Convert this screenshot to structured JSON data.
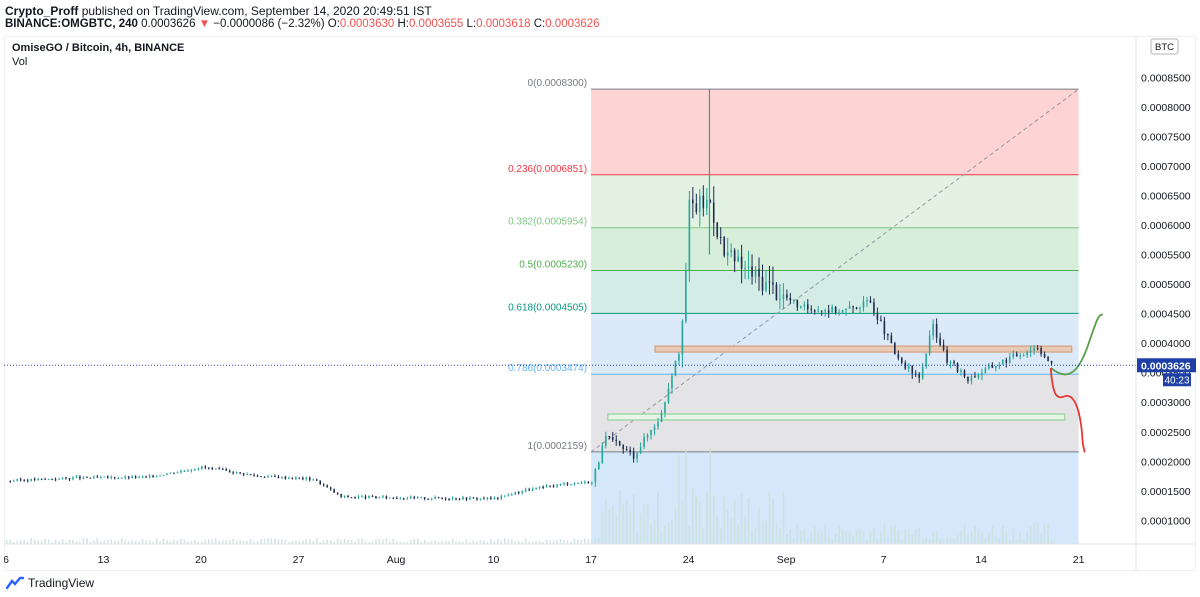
{
  "header": {
    "author": "Crypto_Proff",
    "published_text": "published on TradingView.com, September 14, 2020 20:49:51 IST",
    "symbol": "BINANCE:OMGBTC, 240",
    "last_price": "0.0003626",
    "change": "−0.0000086 (−2.32%)",
    "change_arrow": "▼",
    "open_label": "O:",
    "open": "0.0003630",
    "high_label": "H:",
    "high": "0.0003655",
    "low_label": "L:",
    "low": "0.0003618",
    "close_label": "C:",
    "close": "0.0003626"
  },
  "legend": {
    "title": "OmiseGO / Bitcoin, 4h, BINANCE",
    "volume_label": "Vol"
  },
  "price_axis": {
    "currency_badge": "BTC",
    "price_tag": "0.0003626",
    "countdown": "40:23"
  },
  "footer": {
    "brand": "TradingView"
  },
  "colors": {
    "up": "#26a69a",
    "down": "#1e2b4d",
    "line": "#2196f3",
    "price_line": "#1e40a6",
    "fib_red": "#f23645",
    "fib_green": "#4caf50",
    "fib_teal": "#089981",
    "fib_blue": "#2962ff"
  },
  "chart_data": {
    "type": "candlestick",
    "ylim": [
      6e-05,
      0.00092
    ],
    "x_ticks": [
      "6",
      "13",
      "20",
      "27",
      "Aug",
      "10",
      "17",
      "24",
      "Sep",
      "7",
      "14",
      "21"
    ],
    "y_ticks": [
      "0.0001000",
      "0.0001500",
      "0.0002000",
      "0.0002500",
      "0.0003000",
      "0.0003500",
      "0.0004000",
      "0.0004500",
      "0.0005000",
      "0.0005500",
      "0.0006000",
      "0.0006500",
      "0.0007000",
      "0.0007500",
      "0.0008000",
      "0.0008500"
    ],
    "current_price": 0.0003626,
    "fibonacci": [
      {
        "label": "0(0.0008300)",
        "price": 0.00083,
        "color": "#787b86"
      },
      {
        "label": "0.236(0.0006851)",
        "price": 0.0006851,
        "color": "#f23645"
      },
      {
        "label": "0.382(0.0005954)",
        "price": 0.0005954,
        "color": "#81c784"
      },
      {
        "label": "0.5(0.0005230)",
        "price": 0.000523,
        "color": "#4caf50"
      },
      {
        "label": "0.618(0.0004505)",
        "price": 0.0004505,
        "color": "#089981"
      },
      {
        "label": "0.786(0.0003474)",
        "price": 0.0003474,
        "color": "#64b5f6"
      },
      {
        "label": "1(0.0002159)",
        "price": 0.0002159,
        "color": "#787b86"
      }
    ],
    "zones": [
      {
        "name": "resistance",
        "price_low": 0.000385,
        "price_high": 0.000395,
        "color": "#d7a98f"
      },
      {
        "name": "support",
        "price_low": 0.00027,
        "price_high": 0.00028,
        "color": "#a5d6a7"
      }
    ],
    "series_path": [
      {
        "day": 0,
        "price": 0.000167
      },
      {
        "day": 5,
        "price": 0.000172
      },
      {
        "day": 10,
        "price": 0.000173
      },
      {
        "day": 14,
        "price": 0.00019
      },
      {
        "day": 18,
        "price": 0.000175
      },
      {
        "day": 22,
        "price": 0.00017
      },
      {
        "day": 24,
        "price": 0.00014
      },
      {
        "day": 29,
        "price": 0.000138
      },
      {
        "day": 35,
        "price": 0.000137
      },
      {
        "day": 37,
        "price": 0.00015
      },
      {
        "day": 40,
        "price": 0.000162
      },
      {
        "day": 42,
        "price": 0.000165
      },
      {
        "day": 43,
        "price": 0.00024
      },
      {
        "day": 45,
        "price": 0.00021
      },
      {
        "day": 47,
        "price": 0.00028
      },
      {
        "day": 48.5,
        "price": 0.00042
      },
      {
        "day": 49,
        "price": 0.00063
      },
      {
        "day": 50.5,
        "price": 0.00064
      },
      {
        "day": 51.5,
        "price": 0.00055
      },
      {
        "day": 54,
        "price": 0.00051
      },
      {
        "day": 57,
        "price": 0.00046
      },
      {
        "day": 60,
        "price": 0.000455
      },
      {
        "day": 62,
        "price": 0.00047
      },
      {
        "day": 64,
        "price": 0.00037
      },
      {
        "day": 65.5,
        "price": 0.00034
      },
      {
        "day": 66.5,
        "price": 0.00043
      },
      {
        "day": 67.5,
        "price": 0.00037
      },
      {
        "day": 69,
        "price": 0.00034
      },
      {
        "day": 72,
        "price": 0.000375
      },
      {
        "day": 74,
        "price": 0.000395
      },
      {
        "day": 75,
        "price": 0.0003626
      }
    ],
    "projections": [
      {
        "name": "bullish",
        "color": "#5c9e4c"
      },
      {
        "name": "bearish",
        "color": "#e53935"
      }
    ]
  }
}
